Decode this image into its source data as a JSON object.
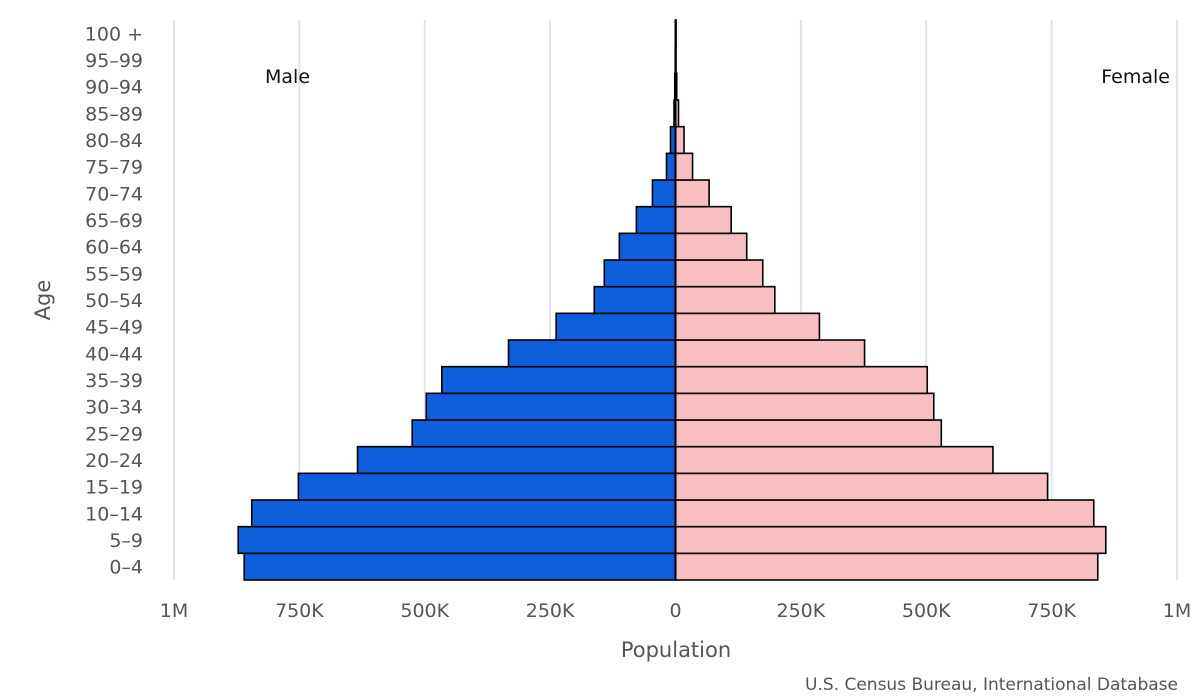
{
  "chart_data": {
    "type": "bar",
    "orientation": "horizontal",
    "kind": "population-pyramid",
    "categories": [
      "0-4",
      "5-9",
      "10-14",
      "15-19",
      "20-24",
      "25-29",
      "30-34",
      "35-39",
      "40-44",
      "45-49",
      "50-54",
      "55-59",
      "60-64",
      "65-69",
      "70-74",
      "75-79",
      "80-84",
      "85-89",
      "90-94",
      "95-99",
      "100 +"
    ],
    "series": [
      {
        "name": "Male",
        "color": "#0f5fdd",
        "values": [
          860000,
          872000,
          845000,
          752000,
          634000,
          525000,
          497000,
          466000,
          333000,
          238000,
          162000,
          142000,
          112000,
          78000,
          46000,
          18000,
          10000,
          3000,
          1500,
          500,
          200
        ]
      },
      {
        "name": "Female",
        "color": "#f8bfc2",
        "values": [
          842000,
          858000,
          834000,
          742000,
          633000,
          530000,
          515000,
          502000,
          377000,
          287000,
          198000,
          174000,
          142000,
          111000,
          67000,
          34000,
          17000,
          6000,
          2500,
          800,
          300
        ]
      }
    ],
    "xlim": [
      -1000000,
      1000000
    ],
    "xticks": [
      {
        "value": -1000000,
        "label": "1M"
      },
      {
        "value": -750000,
        "label": "750K"
      },
      {
        "value": -500000,
        "label": "500K"
      },
      {
        "value": -250000,
        "label": "250K"
      },
      {
        "value": 0,
        "label": "0"
      },
      {
        "value": 250000,
        "label": "250K"
      },
      {
        "value": 500000,
        "label": "500K"
      },
      {
        "value": 750000,
        "label": "750K"
      },
      {
        "value": 1000000,
        "label": "1M"
      }
    ],
    "xlabel": "Population",
    "ylabel": "Age",
    "left_label": "Male",
    "right_label": "Female",
    "grid": true,
    "source": "U.S. Census Bureau, International Database"
  }
}
